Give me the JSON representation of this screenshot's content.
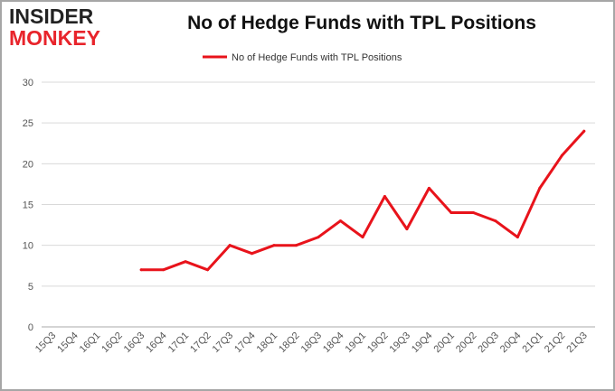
{
  "logo": {
    "top": "INSIDER",
    "bottom": "MONKEY"
  },
  "chart_data": {
    "type": "line",
    "title": "No of Hedge Funds with TPL Positions",
    "categories": [
      "15Q3",
      "15Q4",
      "16Q1",
      "16Q2",
      "16Q3",
      "16Q4",
      "17Q1",
      "17Q2",
      "17Q3",
      "17Q4",
      "18Q1",
      "18Q2",
      "18Q3",
      "18Q4",
      "19Q1",
      "19Q2",
      "19Q3",
      "19Q4",
      "20Q1",
      "20Q2",
      "20Q3",
      "20Q4",
      "21Q1",
      "21Q2",
      "21Q3"
    ],
    "series": [
      {
        "name": "No of Hedge Funds with TPL Positions",
        "color": "#e8131b",
        "values": [
          null,
          null,
          null,
          null,
          7,
          7,
          8,
          7,
          10,
          9,
          10,
          10,
          11,
          13,
          11,
          16,
          12,
          17,
          14,
          14,
          13,
          11,
          17,
          21,
          24
        ]
      }
    ],
    "ylim": [
      0,
      30
    ],
    "yticks": [
      0,
      5,
      10,
      15,
      20,
      25,
      30
    ],
    "xlabel": "",
    "ylabel": "",
    "grid": true,
    "legend": "top-center"
  }
}
